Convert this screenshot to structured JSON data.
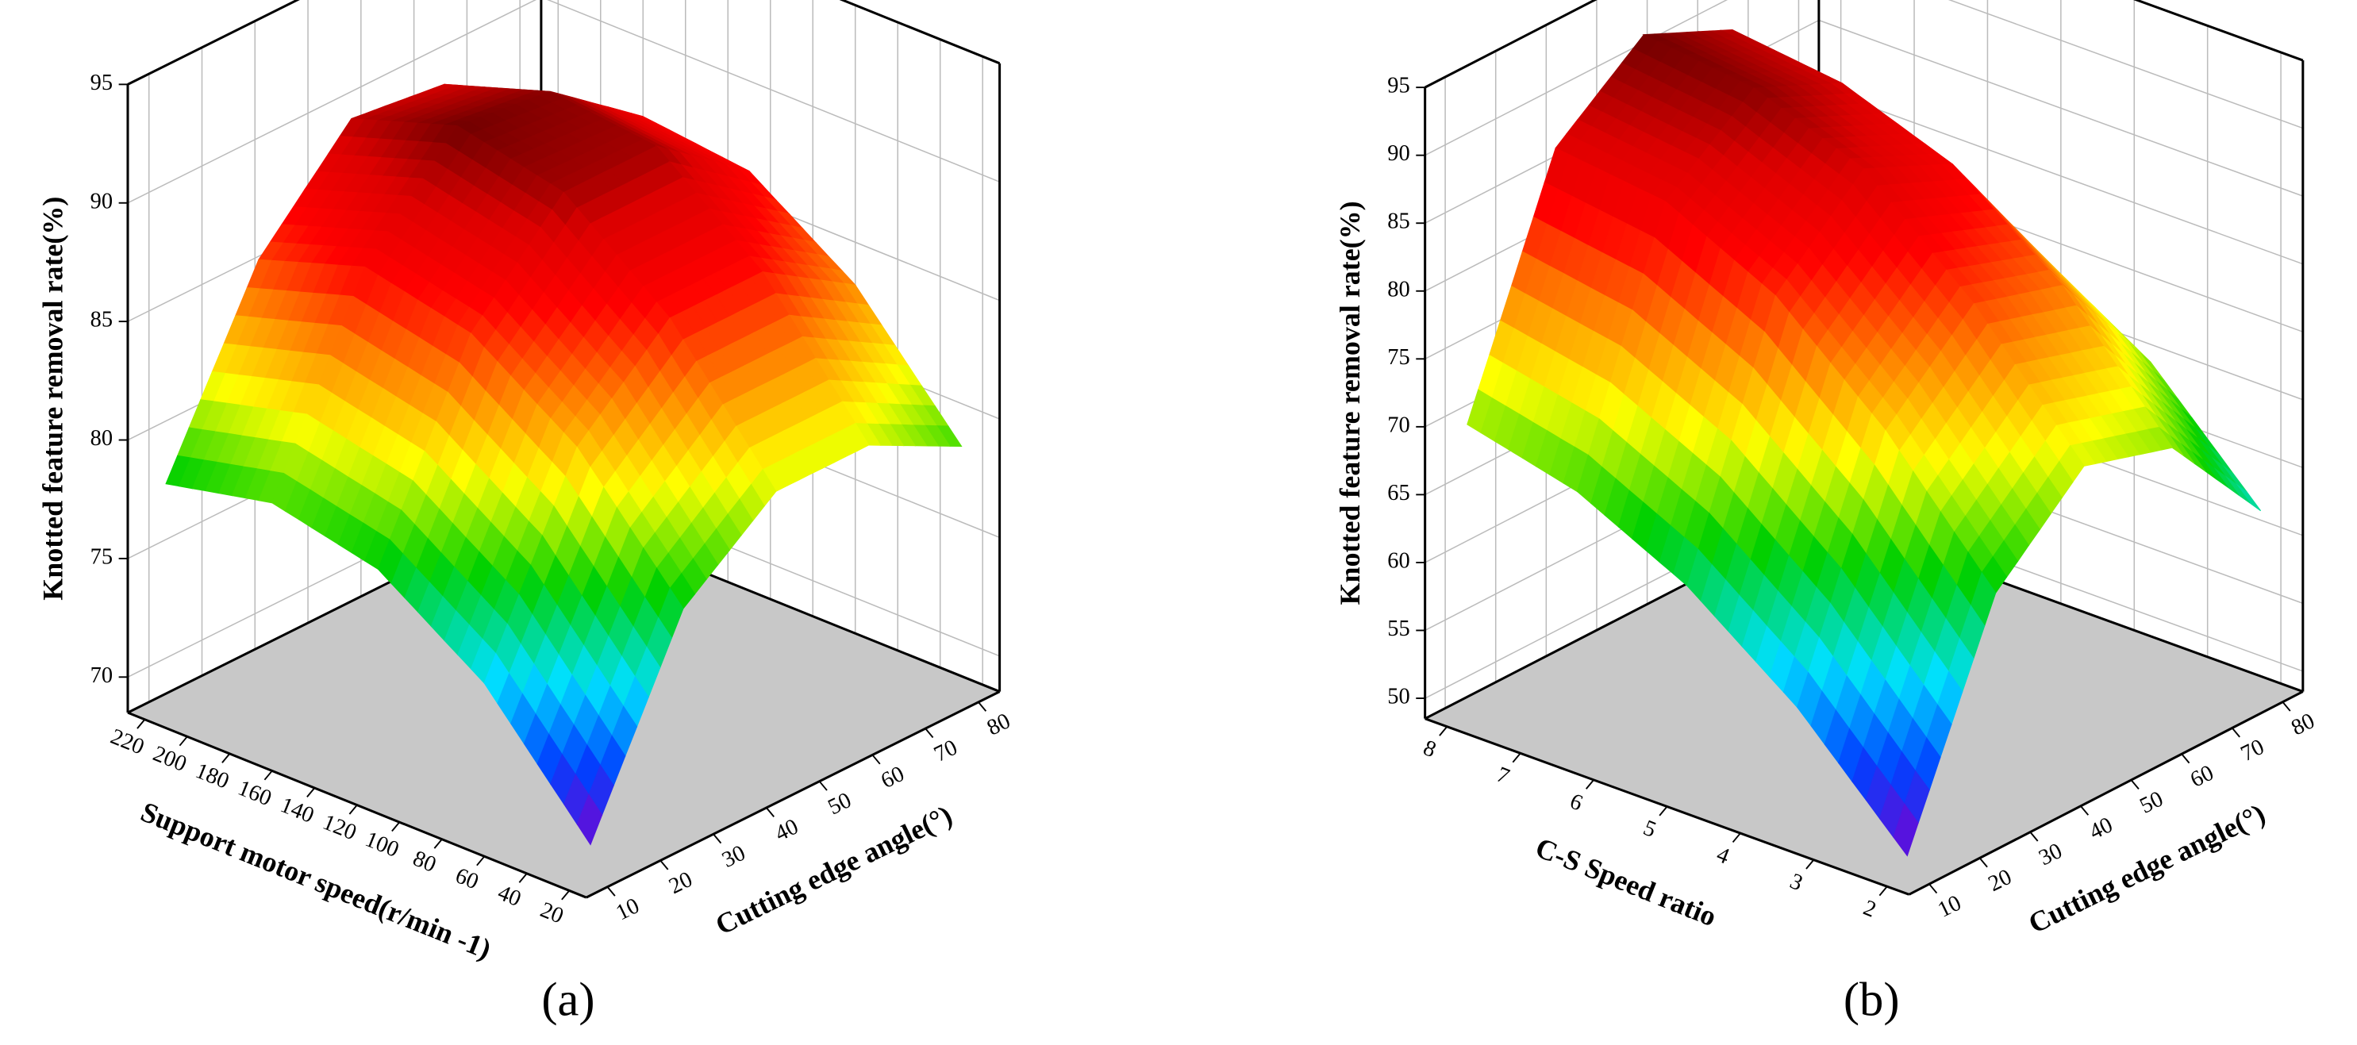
{
  "chart_data": [
    {
      "type": "surface",
      "label": "(a)",
      "xlabel": "Cutting edge angle(°)",
      "ylabel": "Support motor speed(r/min -1)",
      "zlabel": "Knotted feature removal rate(%)",
      "x": [
        10,
        27.5,
        45,
        62.5,
        80
      ],
      "y": [
        20,
        70,
        120,
        170,
        220
      ],
      "z": [
        [
          70,
          78,
          81,
          81,
          79
        ],
        [
          75,
          83,
          86.5,
          86.5,
          84
        ],
        [
          78,
          86,
          90,
          90,
          87
        ],
        [
          79,
          87,
          91,
          90.5,
          87.5
        ],
        [
          78,
          85.5,
          89.5,
          89,
          86
        ]
      ],
      "xlim": [
        6,
        84
      ],
      "ylim": [
        12,
        228
      ],
      "zlim": [
        68.5,
        95
      ],
      "xticks": [
        10,
        20,
        30,
        40,
        50,
        60,
        70,
        80
      ],
      "yticks": [
        20,
        40,
        60,
        80,
        100,
        120,
        140,
        160,
        180,
        200,
        220
      ],
      "zticks": [
        70,
        75,
        80,
        85,
        90,
        95
      ]
    },
    {
      "type": "surface",
      "label": "(b)",
      "xlabel": "Cutting edge angle(°)",
      "ylabel": "C-S Speed ratio",
      "zlabel": "Knotted feature removal rate(%)",
      "x": [
        10,
        27.5,
        45,
        62.5,
        80
      ],
      "y": [
        2,
        3.5,
        5,
        6.5,
        8
      ],
      "z": [
        [
          50,
          66,
          72,
          70,
          62
        ],
        [
          58,
          75,
          81,
          79,
          70
        ],
        [
          64,
          82,
          88,
          85,
          75
        ],
        [
          68,
          86,
          91,
          88,
          78
        ],
        [
          70,
          87,
          92,
          89,
          79
        ]
      ],
      "xlim": [
        6,
        84
      ],
      "ylim": [
        1.7,
        8.3
      ],
      "zlim": [
        48.5,
        95
      ],
      "xticks": [
        10,
        20,
        30,
        40,
        50,
        60,
        70,
        80
      ],
      "yticks": [
        2,
        3,
        4,
        5,
        6,
        7,
        8
      ],
      "zticks": [
        50,
        55,
        60,
        65,
        70,
        75,
        80,
        85,
        90,
        95
      ]
    }
  ]
}
